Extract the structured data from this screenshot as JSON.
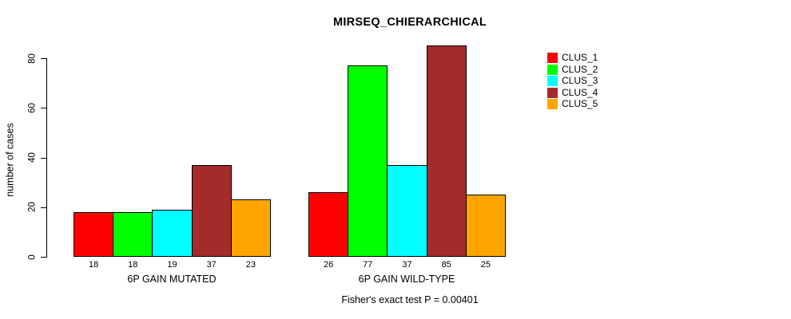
{
  "chart": {
    "title": "MIRSEQ_CHIERARCHICAL",
    "ylabel": "number of cases",
    "subtitle": "Fisher's exact test P = 0.00401"
  },
  "chart_data": {
    "type": "bar",
    "title": "MIRSEQ_CHIERARCHICAL",
    "ylabel": "number of cases",
    "xlabel": "",
    "annotation": "Fisher's exact test P = 0.00401",
    "categories": [
      "6P GAIN MUTATED",
      "6P GAIN WILD-TYPE"
    ],
    "series": [
      {
        "name": "CLUS_1",
        "color": "#FF0000",
        "values": [
          18,
          26
        ]
      },
      {
        "name": "CLUS_2",
        "color": "#00FF00",
        "values": [
          18,
          77
        ]
      },
      {
        "name": "CLUS_3",
        "color": "#00FFFF",
        "values": [
          19,
          37
        ]
      },
      {
        "name": "CLUS_4",
        "color": "#A52A2A",
        "values": [
          37,
          85
        ]
      },
      {
        "name": "CLUS_5",
        "color": "#FFA500",
        "values": [
          23,
          25
        ]
      }
    ],
    "bar_value_labels": [
      [
        18,
        18,
        19,
        37,
        23
      ],
      [
        26,
        77,
        37,
        85,
        25
      ]
    ],
    "yticks": [
      0,
      20,
      40,
      60,
      80
    ],
    "ylim": [
      0,
      85
    ],
    "grid": false,
    "legend_position": "top-right",
    "legend_entries": [
      "CLUS_1",
      "CLUS_2",
      "CLUS_3",
      "CLUS_4",
      "CLUS_5"
    ]
  }
}
